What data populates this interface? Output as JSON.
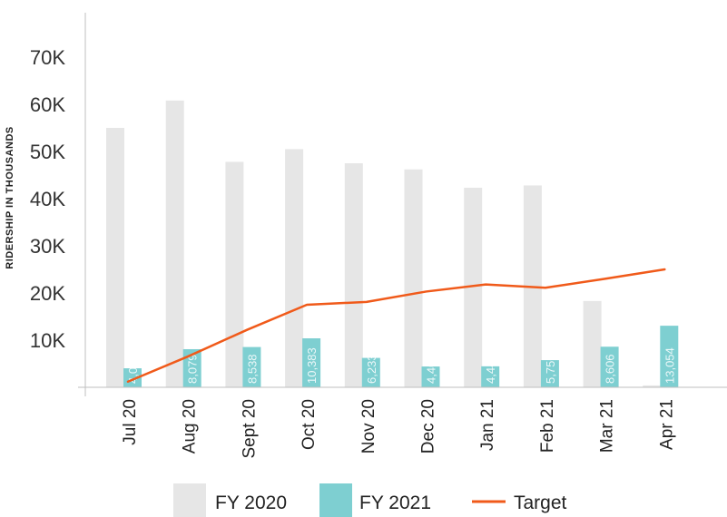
{
  "chart_data": {
    "type": "bar",
    "title": "",
    "xlabel": "",
    "ylabel": "RIDERSHIP IN THOUSANDS",
    "ylim": [
      0,
      75000
    ],
    "yticks": [
      10000,
      20000,
      30000,
      40000,
      50000,
      60000,
      70000
    ],
    "ytick_labels": [
      "10K",
      "20K",
      "30K",
      "40K",
      "50K",
      "60K",
      "70K"
    ],
    "categories": [
      "Jul 20",
      "Aug 20",
      "Sept 20",
      "Oct 20",
      "Nov 20",
      "Dec 20",
      "Jan 21",
      "Feb 21",
      "Mar 21",
      "Apr 21"
    ],
    "series": [
      {
        "name": "FY 2020",
        "kind": "bar",
        "color": "#e6e6e6",
        "values": [
          55000,
          60800,
          47800,
          50500,
          47500,
          46200,
          42300,
          42800,
          18300,
          400
        ]
      },
      {
        "name": "FY 2021",
        "kind": "bar",
        "color": "#7ecfd1",
        "values": [
          4028,
          8079,
          8538,
          10383,
          6233,
          4408,
          4447,
          5756,
          8606,
          13054
        ],
        "data_labels": [
          "4,028",
          "8,079",
          "8,538",
          "10,383",
          "6,233",
          "4,408",
          "4,447",
          "5,756",
          "8,606",
          "13,054"
        ]
      },
      {
        "name": "Target",
        "kind": "line",
        "color": "#f05a1a",
        "values": [
          1200,
          6500,
          12200,
          17500,
          18100,
          20300,
          21800,
          21100,
          23000,
          25000
        ]
      }
    ],
    "grid": false,
    "legend_position": "bottom"
  }
}
